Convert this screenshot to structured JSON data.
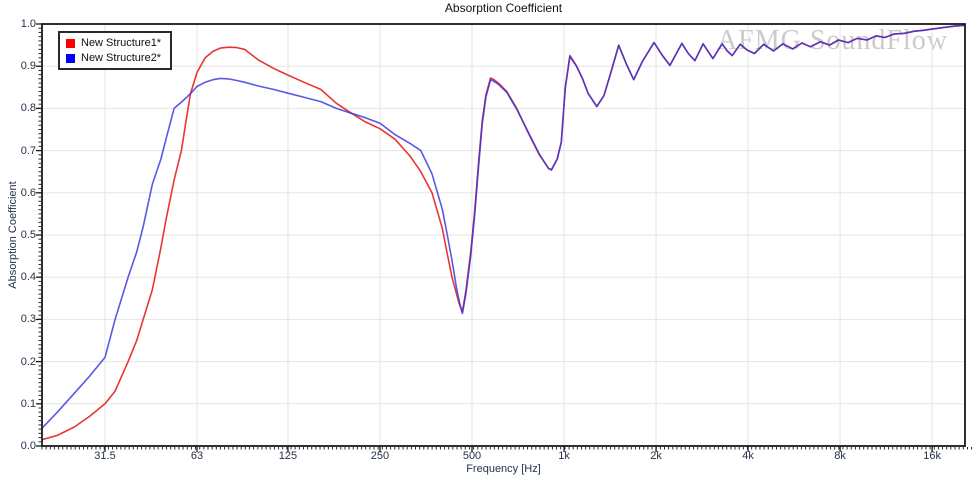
{
  "window": {
    "watermark": "AFMG SoundFlow"
  },
  "colors": {
    "grid": "#e5e5e5",
    "axis": "#1a1a1a",
    "tick": "#2a2a2a",
    "legend_red": "#ff0000",
    "legend_blue": "#0000ff"
  },
  "chart_data": {
    "type": "line",
    "title": "Absorption Coefficient",
    "xlabel": "Frequency [Hz]",
    "ylabel": "Absorption Coefficient",
    "x_scale": "log",
    "x_range_hz": [
      19.6,
      20500
    ],
    "ylim": [
      0.0,
      1.0
    ],
    "grid": true,
    "legend_position": "top-left",
    "x_ticks": [
      {
        "label": "31.5",
        "hz": 31.5
      },
      {
        "label": "63",
        "hz": 63
      },
      {
        "label": "125",
        "hz": 125
      },
      {
        "label": "250",
        "hz": 250
      },
      {
        "label": "500",
        "hz": 500
      },
      {
        "label": "1k",
        "hz": 1000
      },
      {
        "label": "2k",
        "hz": 2000
      },
      {
        "label": "4k",
        "hz": 4000
      },
      {
        "label": "8k",
        "hz": 8000
      },
      {
        "label": "16k",
        "hz": 16000
      }
    ],
    "y_ticks": [
      "0.0",
      "0.1",
      "0.2",
      "0.3",
      "0.4",
      "0.5",
      "0.6",
      "0.7",
      "0.8",
      "0.9",
      "1.0"
    ],
    "x_hz": [
      19.6,
      22,
      25,
      28,
      31.5,
      34,
      37.5,
      40,
      42,
      45,
      48,
      50,
      53,
      56,
      58,
      60,
      63,
      67,
      71,
      75,
      80,
      85,
      90,
      100,
      112,
      125,
      140,
      160,
      180,
      200,
      224,
      250,
      280,
      315,
      340,
      370,
      400,
      415,
      430,
      445,
      455,
      465,
      478,
      495,
      510,
      525,
      540,
      555,
      575,
      590,
      610,
      650,
      700,
      760,
      830,
      890,
      910,
      950,
      980,
      1010,
      1045,
      1100,
      1150,
      1200,
      1280,
      1350,
      1430,
      1510,
      1600,
      1690,
      1800,
      1970,
      2100,
      2220,
      2430,
      2550,
      2680,
      2850,
      2960,
      3070,
      3290,
      3420,
      3550,
      3770,
      3980,
      4200,
      4500,
      4850,
      5200,
      5600,
      6000,
      6400,
      6900,
      7400,
      7900,
      8500,
      9100,
      9800,
      10500,
      11200,
      12000,
      13000,
      14000,
      15000,
      16000,
      17500,
      19000,
      20500
    ],
    "series": [
      {
        "name": "New Structure1*",
        "color": "#e93535",
        "values": [
          0.015,
          0.025,
          0.045,
          0.07,
          0.1,
          0.13,
          0.2,
          0.25,
          0.3,
          0.37,
          0.47,
          0.54,
          0.63,
          0.7,
          0.77,
          0.835,
          0.885,
          0.92,
          0.935,
          0.943,
          0.945,
          0.944,
          0.94,
          0.915,
          0.895,
          0.879,
          0.863,
          0.845,
          0.812,
          0.79,
          0.768,
          0.752,
          0.727,
          0.685,
          0.65,
          0.6,
          0.515,
          0.455,
          0.4,
          0.36,
          0.335,
          0.318,
          0.37,
          0.46,
          0.555,
          0.67,
          0.77,
          0.832,
          0.872,
          0.868,
          0.86,
          0.84,
          0.8,
          0.745,
          0.69,
          0.658,
          0.655,
          0.68,
          0.72,
          0.85,
          0.925,
          0.9,
          0.87,
          0.835,
          0.805,
          0.83,
          0.89,
          0.95,
          0.905,
          0.868,
          0.91,
          0.956,
          0.925,
          0.902,
          0.954,
          0.93,
          0.913,
          0.953,
          0.935,
          0.918,
          0.953,
          0.936,
          0.925,
          0.952,
          0.938,
          0.93,
          0.952,
          0.936,
          0.953,
          0.941,
          0.955,
          0.946,
          0.958,
          0.95,
          0.962,
          0.956,
          0.966,
          0.962,
          0.972,
          0.968,
          0.976,
          0.978,
          0.983,
          0.985,
          0.988,
          0.992,
          0.995,
          0.997
        ]
      },
      {
        "name": "New Structure2*",
        "color": "#3535df",
        "values": [
          0.042,
          0.08,
          0.125,
          0.165,
          0.21,
          0.3,
          0.4,
          0.46,
          0.52,
          0.62,
          0.68,
          0.73,
          0.8,
          0.815,
          0.825,
          0.835,
          0.852,
          0.862,
          0.868,
          0.871,
          0.87,
          0.866,
          0.862,
          0.853,
          0.845,
          0.836,
          0.827,
          0.816,
          0.8,
          0.789,
          0.778,
          0.765,
          0.738,
          0.716,
          0.7,
          0.645,
          0.56,
          0.5,
          0.44,
          0.375,
          0.34,
          0.314,
          0.362,
          0.45,
          0.545,
          0.66,
          0.762,
          0.827,
          0.868,
          0.864,
          0.857,
          0.838,
          0.798,
          0.747,
          0.692,
          0.657,
          0.654,
          0.68,
          0.72,
          0.849,
          0.923,
          0.899,
          0.87,
          0.835,
          0.804,
          0.83,
          0.89,
          0.949,
          0.905,
          0.868,
          0.91,
          0.956,
          0.925,
          0.902,
          0.954,
          0.93,
          0.913,
          0.953,
          0.935,
          0.918,
          0.953,
          0.936,
          0.925,
          0.952,
          0.938,
          0.93,
          0.952,
          0.936,
          0.953,
          0.941,
          0.955,
          0.946,
          0.958,
          0.95,
          0.962,
          0.956,
          0.966,
          0.962,
          0.972,
          0.968,
          0.976,
          0.978,
          0.983,
          0.985,
          0.988,
          0.992,
          0.995,
          0.997
        ]
      }
    ]
  }
}
